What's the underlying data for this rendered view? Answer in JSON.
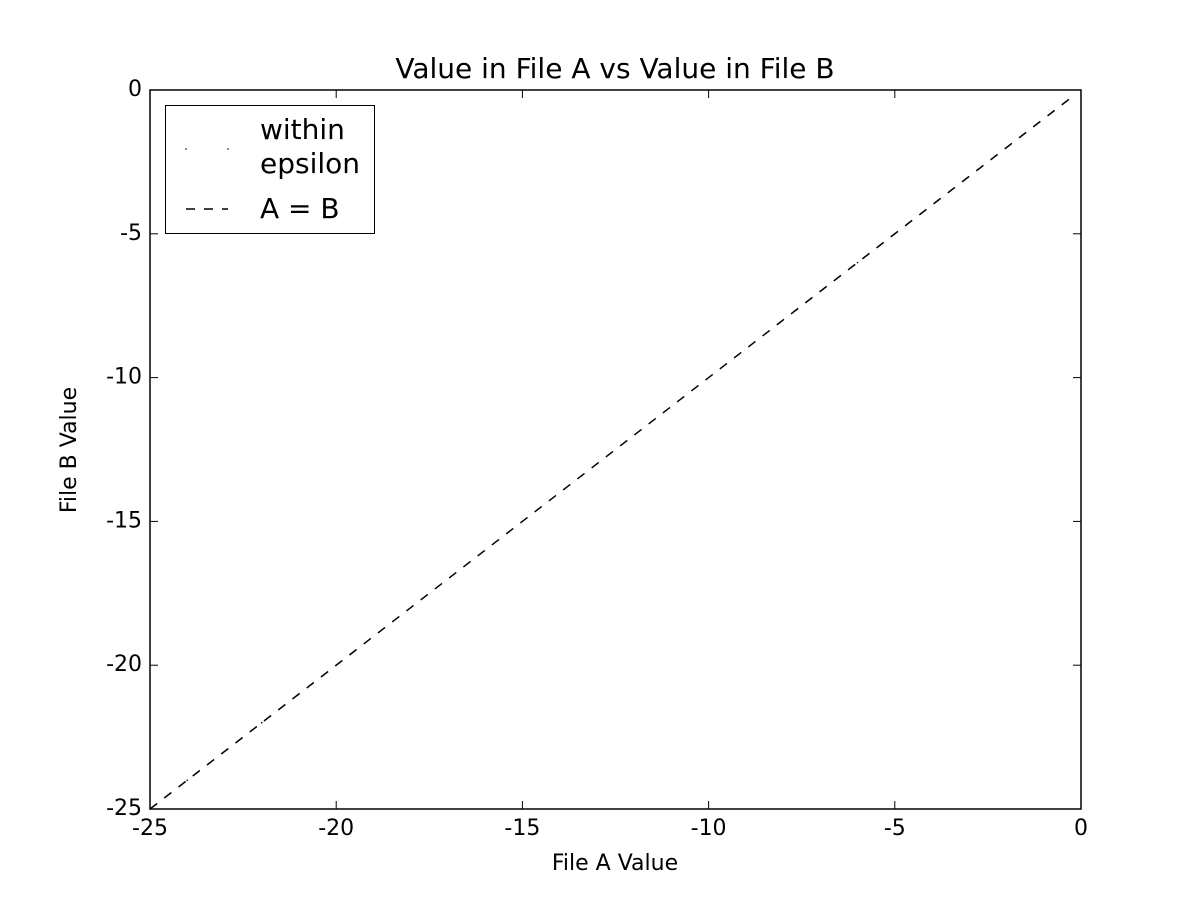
{
  "chart_data": {
    "type": "scatter",
    "title": "Value in File A vs Value in File B",
    "xlabel": "File A Value",
    "ylabel": "File B Value",
    "xlim": [
      -25,
      0
    ],
    "ylim": [
      -25,
      0
    ],
    "xticks": [
      -25,
      -20,
      -15,
      -10,
      -5,
      0
    ],
    "yticks": [
      -25,
      -20,
      -15,
      -10,
      -5,
      0
    ],
    "grid": false,
    "legend": "upper left",
    "series": [
      {
        "name": "within epsilon",
        "type": "scatter",
        "color": "#000000",
        "x": [
          -24,
          -22,
          -21,
          -15,
          -13,
          -7,
          -6,
          -5
        ],
        "values": [
          -24,
          -22,
          -21,
          -15,
          -13,
          -7,
          -6,
          -5
        ]
      },
      {
        "name": "A = B",
        "type": "line",
        "dash": true,
        "color": "#000000",
        "x": [
          -25,
          -0.3
        ],
        "values": [
          -25,
          -0.3
        ]
      }
    ]
  }
}
